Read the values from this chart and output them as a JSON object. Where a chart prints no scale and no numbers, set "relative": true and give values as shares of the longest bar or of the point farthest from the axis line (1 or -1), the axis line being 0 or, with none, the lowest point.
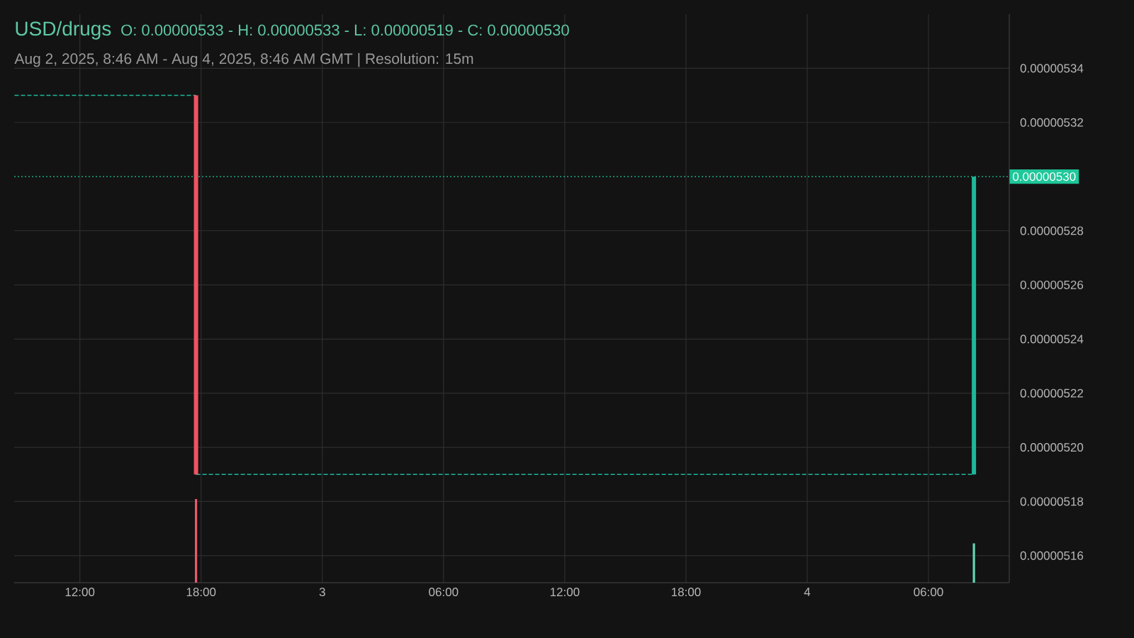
{
  "chart_data": [
    {
      "type": "candlestick",
      "title": "USD/drugs",
      "subtitle": "Aug 2, 2025, 8:46 AM - Aug 4, 2025, 8:46 AM GMT   |   Resolution: 15m",
      "annotations": [
        "O: 0.00000533 - H: 0.00000533 - L: 0.00000519 - C: 0.00000530"
      ],
      "x": [
        "2025-08-02T17:45",
        "2025-08-04T08:15"
      ],
      "ohlc": [
        [
          5.33e-06,
          5.33e-06,
          5.19e-06,
          5.19e-06
        ],
        [
          5.19e-06,
          5.3e-06,
          5.19e-06,
          5.3e-06
        ]
      ],
      "colors": [
        "#ef5361",
        "#1eb89b"
      ],
      "series": [
        {
          "type": "line",
          "x": [
            "2025-08-02T08:46",
            "2025-08-02T17:45"
          ],
          "values": [
            5.33e-06,
            5.33e-06
          ],
          "color": "#1eb89b",
          "line_style": "dashed"
        },
        {
          "type": "line",
          "x": [
            "2025-08-02T17:45",
            "2025-08-04T08:15"
          ],
          "values": [
            5.19e-06,
            5.19e-06
          ],
          "color": "#1eb89b",
          "line_style": "dashed"
        }
      ],
      "ref_lines": [
        {
          "axis": "y",
          "value": 5.3e-06,
          "label": "0.00000530",
          "color": "#1fc79a",
          "line_style": "dotted"
        }
      ],
      "xlim": [
        "2025-08-02T08:45",
        "2025-08-04T10:00"
      ],
      "xticks": [
        {
          "value": "2025-08-02T12:00",
          "label": "12:00"
        },
        {
          "value": "2025-08-02T18:00",
          "label": "18:00"
        },
        {
          "value": "2025-08-03T00:00",
          "label": "3"
        },
        {
          "value": "2025-08-03T06:00",
          "label": "06:00"
        },
        {
          "value": "2025-08-03T12:00",
          "label": "12:00"
        },
        {
          "value": "2025-08-03T18:00",
          "label": "18:00"
        },
        {
          "value": "2025-08-04T00:00",
          "label": "4"
        },
        {
          "value": "2025-08-04T06:00",
          "label": "06:00"
        }
      ],
      "ylim": [
        5.15e-06,
        5.36e-06
      ],
      "yticks": [
        {
          "value": 5.16e-06,
          "label": "0.00000516"
        },
        {
          "value": 5.18e-06,
          "label": "0.00000518"
        },
        {
          "value": 5.2e-06,
          "label": "0.00000520"
        },
        {
          "value": 5.22e-06,
          "label": "0.00000522"
        },
        {
          "value": 5.24e-06,
          "label": "0.00000524"
        },
        {
          "value": 5.26e-06,
          "label": "0.00000526"
        },
        {
          "value": 5.28e-06,
          "label": "0.00000528"
        },
        {
          "value": 5.32e-06,
          "label": "0.00000532"
        },
        {
          "value": 5.34e-06,
          "label": "0.00000534"
        }
      ],
      "grid": true
    },
    {
      "type": "bar",
      "x": [
        "2025-08-02T17:45",
        "2025-08-04T08:15"
      ],
      "values": [
        1,
        0.47
      ],
      "colors": [
        "#e85a6e",
        "#5fd6b2"
      ],
      "relative": true,
      "xlim": [
        "2025-08-02T08:45",
        "2025-08-04T10:00"
      ]
    }
  ]
}
